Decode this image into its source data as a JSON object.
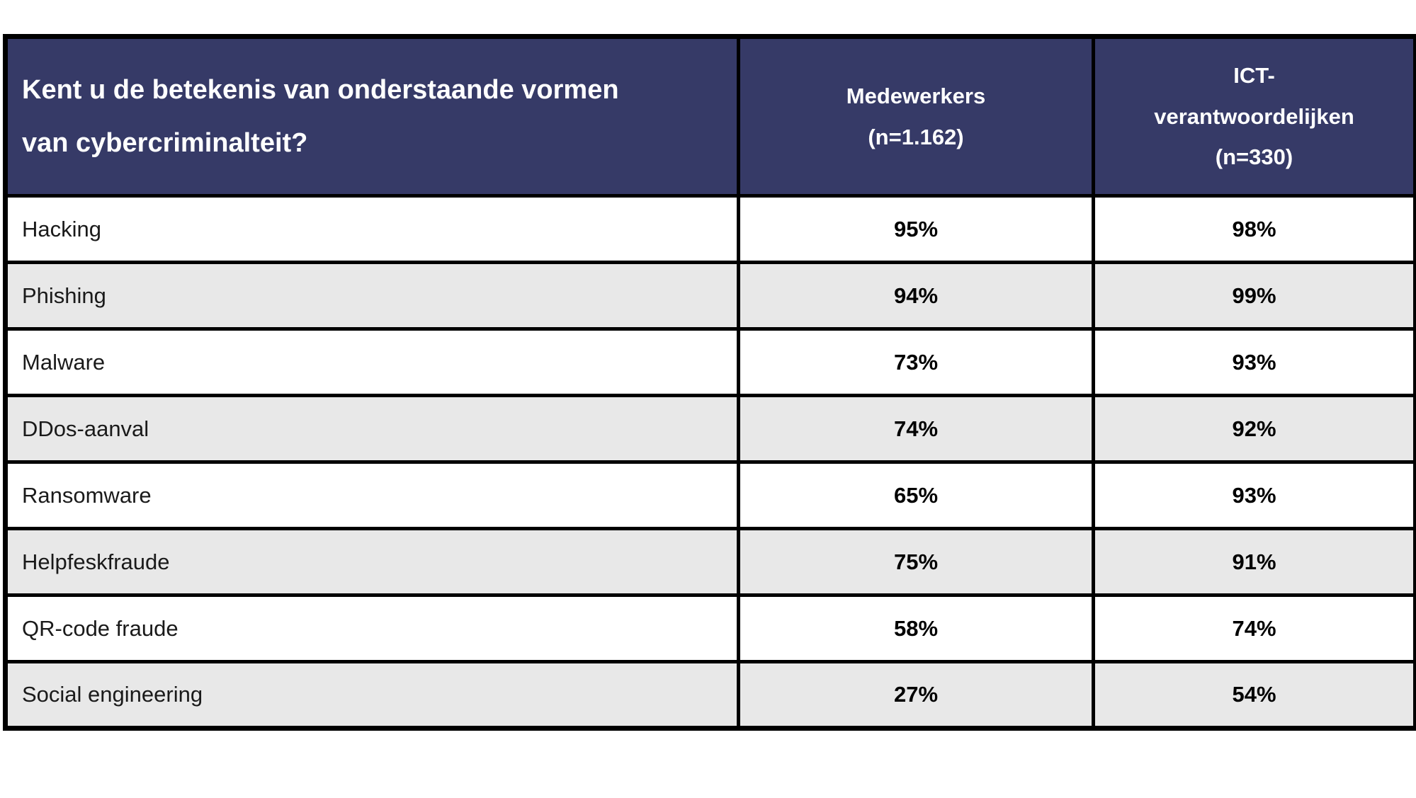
{
  "table": {
    "header": {
      "question_line1": "Kent u de betekenis van onderstaande vormen",
      "question_line2": "van cybercriminalteit?",
      "medewerkers_line1": "Medewerkers",
      "medewerkers_line2": "(n=1.162)",
      "ict_line1": "ICT-",
      "ict_line2": "verantwoordelijken",
      "ict_line3": "(n=330)"
    },
    "rows": [
      {
        "label": "Hacking",
        "medewerkers": "95%",
        "ict": "98%"
      },
      {
        "label": "Phishing",
        "medewerkers": "94%",
        "ict": "99%"
      },
      {
        "label": "Malware",
        "medewerkers": "73%",
        "ict": "93%"
      },
      {
        "label": "DDos-aanval",
        "medewerkers": "74%",
        "ict": "92%"
      },
      {
        "label": "Ransomware",
        "medewerkers": "65%",
        "ict": "93%"
      },
      {
        "label": "Helpfeskfraude",
        "medewerkers": "75%",
        "ict": "91%"
      },
      {
        "label": "QR-code fraude",
        "medewerkers": "58%",
        "ict": "74%"
      },
      {
        "label": "Social engineering",
        "medewerkers": "27%",
        "ict": "54%"
      }
    ]
  },
  "colors": {
    "header_background": "#363A67",
    "header_text": "#FFFFFF",
    "row_alt_background": "#E8E8E8",
    "row_background": "#FFFFFF",
    "border": "#000000",
    "body_text": "#1A1A1A"
  },
  "chart_data": {
    "type": "table",
    "title": "Kent u de betekenis van onderstaande vormen van cybercriminalteit?",
    "columns": [
      "Vorm",
      "Medewerkers (n=1.162)",
      "ICT-verantwoordelijken (n=330)"
    ],
    "categories": [
      "Hacking",
      "Phishing",
      "Malware",
      "DDos-aanval",
      "Ransomware",
      "Helpfeskfraude",
      "QR-code fraude",
      "Social engineering"
    ],
    "series": [
      {
        "name": "Medewerkers (n=1.162)",
        "values": [
          95,
          94,
          73,
          74,
          65,
          75,
          58,
          27
        ]
      },
      {
        "name": "ICT-verantwoordelijken (n=330)",
        "values": [
          98,
          99,
          93,
          92,
          93,
          91,
          74,
          54
        ]
      }
    ],
    "unit": "%"
  }
}
